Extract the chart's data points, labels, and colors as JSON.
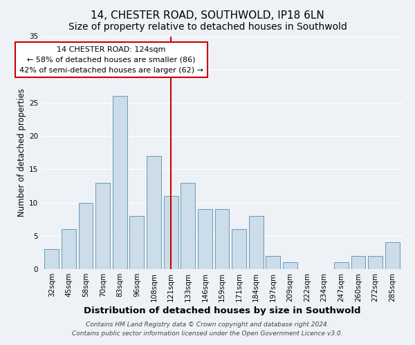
{
  "title": "14, CHESTER ROAD, SOUTHWOLD, IP18 6LN",
  "subtitle": "Size of property relative to detached houses in Southwold",
  "xlabel": "Distribution of detached houses by size in Southwold",
  "ylabel": "Number of detached properties",
  "bar_labels": [
    "32sqm",
    "45sqm",
    "58sqm",
    "70sqm",
    "83sqm",
    "96sqm",
    "108sqm",
    "121sqm",
    "133sqm",
    "146sqm",
    "159sqm",
    "171sqm",
    "184sqm",
    "197sqm",
    "209sqm",
    "222sqm",
    "234sqm",
    "247sqm",
    "260sqm",
    "272sqm",
    "285sqm"
  ],
  "bar_values": [
    3,
    6,
    10,
    13,
    26,
    8,
    17,
    11,
    13,
    9,
    9,
    6,
    8,
    2,
    1,
    0,
    0,
    1,
    2,
    2,
    4
  ],
  "bar_color": "#ccdce8",
  "bar_edge_color": "#6699bb",
  "marker_index": 7,
  "marker_color": "#cc0000",
  "annotation_title": "14 CHESTER ROAD: 124sqm",
  "annotation_line1": "← 58% of detached houses are smaller (86)",
  "annotation_line2": "42% of semi-detached houses are larger (62) →",
  "annotation_box_color": "#ffffff",
  "annotation_box_edge": "#cc0000",
  "ylim": [
    0,
    35
  ],
  "yticks": [
    0,
    5,
    10,
    15,
    20,
    25,
    30,
    35
  ],
  "footer1": "Contains HM Land Registry data © Crown copyright and database right 2024.",
  "footer2": "Contains public sector information licensed under the Open Government Licence v3.0.",
  "background_color": "#eef2f7",
  "title_fontsize": 11,
  "subtitle_fontsize": 10,
  "xlabel_fontsize": 9.5,
  "ylabel_fontsize": 8.5,
  "tick_fontsize": 7.5,
  "annotation_fontsize": 8,
  "footer_fontsize": 6.5
}
